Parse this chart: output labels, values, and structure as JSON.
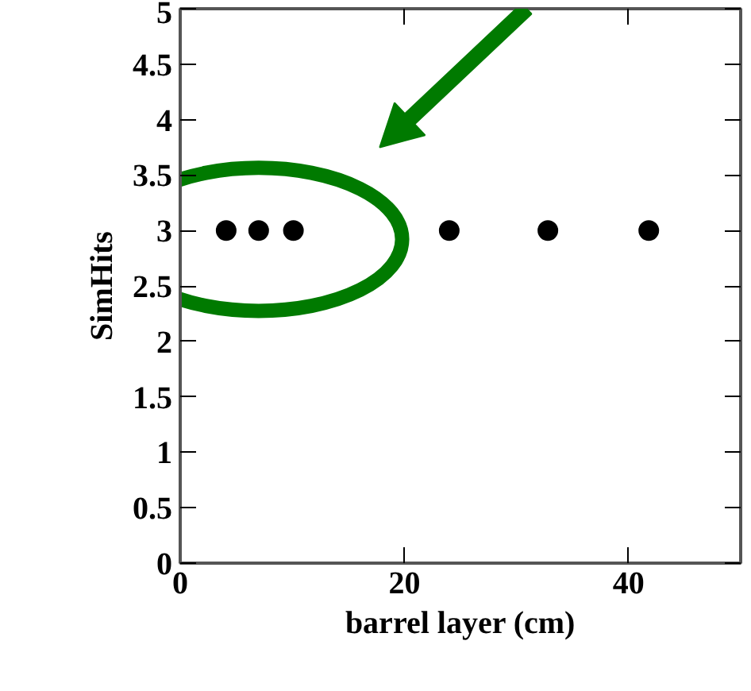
{
  "chart_data": {
    "type": "scatter",
    "xlabel": "barrel layer (cm)",
    "ylabel": "SimHits",
    "x": [
      4.1,
      7.0,
      10.1,
      24.0,
      32.8,
      41.8
    ],
    "series": [
      {
        "color": "#000000",
        "values": [
          3,
          3,
          3,
          3,
          3,
          3
        ]
      }
    ],
    "marker": "circle",
    "grid": false,
    "xlim": [
      0,
      50
    ],
    "xticks": [
      0,
      20,
      40
    ],
    "ylim": [
      0,
      5
    ],
    "yticks": [
      0,
      0.5,
      1,
      1.5,
      2,
      2.5,
      3,
      3.5,
      4,
      4.5,
      5
    ]
  }
}
